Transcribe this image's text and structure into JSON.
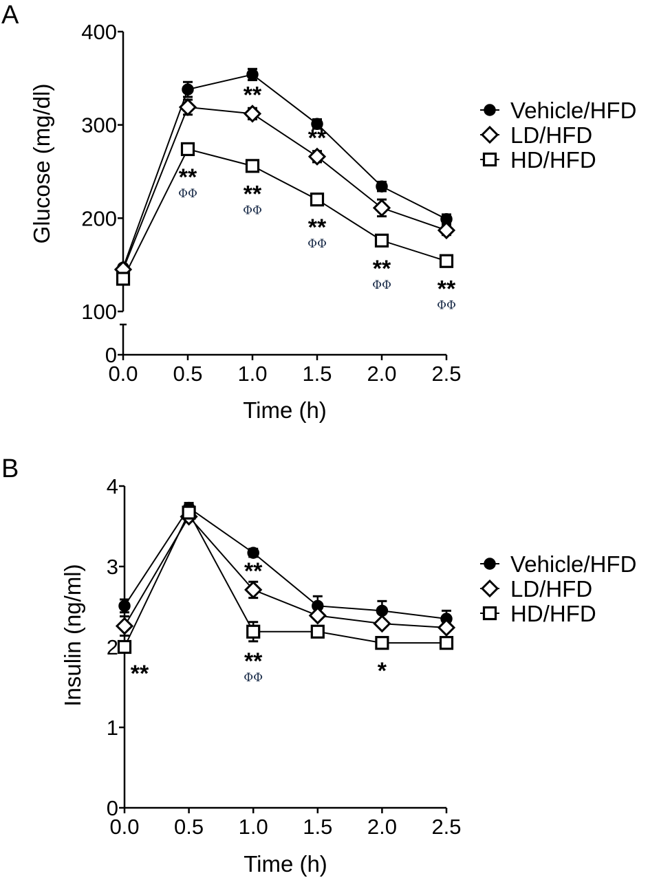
{
  "chart_data": [
    {
      "panel": "A",
      "type": "line",
      "title": "",
      "xlabel": "Time (h)",
      "ylabel": "Glucose (mg/dl)",
      "x": [
        0.0,
        0.5,
        1.0,
        1.5,
        2.0,
        2.5
      ],
      "x_tick_labels": [
        "0.0",
        "0.5",
        "1.0",
        "1.5",
        "2.0",
        "2.5"
      ],
      "y_tick_values": [
        0,
        100,
        200,
        300,
        400
      ],
      "y_tick_labels": [
        "0",
        "100",
        "200",
        "300",
        "400"
      ],
      "ylim": [
        0,
        400
      ],
      "y_axis_break": [
        20,
        100
      ],
      "legend_position": "right",
      "grid": false,
      "series": [
        {
          "name": "Vehicle/HFD",
          "marker": "filled-circle",
          "values": [
            147,
            338,
            354,
            301,
            234,
            199
          ],
          "errors": [
            3,
            8,
            6,
            5,
            5,
            5
          ]
        },
        {
          "name": "LD/HFD",
          "marker": "open-diamond",
          "values": [
            145,
            319,
            312,
            266,
            211,
            187
          ],
          "errors": [
            3,
            8,
            6,
            6,
            9,
            5
          ]
        },
        {
          "name": "HD/HFD",
          "marker": "open-square",
          "values": [
            135,
            274,
            256,
            220,
            176,
            154
          ],
          "errors": [
            3,
            5,
            3,
            3,
            3,
            3
          ]
        }
      ],
      "annotations": [
        {
          "x": 0.5,
          "stars": "**",
          "phi": "ΦΦ",
          "anchor": "HD/HFD"
        },
        {
          "x": 1.0,
          "stars": "**",
          "phi": "",
          "anchor": "LD/HFD"
        },
        {
          "x": 1.0,
          "stars": "**",
          "phi": "ΦΦ",
          "anchor": "HD/HFD"
        },
        {
          "x": 1.5,
          "stars": "**",
          "phi": "",
          "anchor": "LD/HFD"
        },
        {
          "x": 1.5,
          "stars": "**",
          "phi": "ΦΦ",
          "anchor": "HD/HFD"
        },
        {
          "x": 2.0,
          "stars": "**",
          "phi": "ΦΦ",
          "anchor": "HD/HFD"
        },
        {
          "x": 2.5,
          "stars": "**",
          "phi": "ΦΦ",
          "anchor": "HD/HFD"
        }
      ]
    },
    {
      "panel": "B",
      "type": "line",
      "title": "",
      "xlabel": "Time (h)",
      "ylabel": "Insulin (ng/ml)",
      "x": [
        0.0,
        0.5,
        1.0,
        1.5,
        2.0,
        2.5
      ],
      "x_tick_labels": [
        "0.0",
        "0.5",
        "1.0",
        "1.5",
        "2.0",
        "2.5"
      ],
      "y_tick_values": [
        0,
        1,
        2,
        3,
        4
      ],
      "y_tick_labels": [
        "0",
        "1",
        "2",
        "3",
        "4"
      ],
      "ylim": [
        0,
        4
      ],
      "legend_position": "right",
      "grid": false,
      "series": [
        {
          "name": "Vehicle/HFD",
          "marker": "filled-circle",
          "values": [
            2.51,
            3.73,
            3.17,
            2.51,
            2.45,
            2.35
          ],
          "errors": [
            0.08,
            0.06,
            0.05,
            0.12,
            0.12,
            0.1
          ]
        },
        {
          "name": "LD/HFD",
          "marker": "open-diamond",
          "values": [
            2.26,
            3.62,
            2.71,
            2.39,
            2.29,
            2.24
          ],
          "errors": [
            0.12,
            0.04,
            0.1,
            0.03,
            0.03,
            0.03
          ]
        },
        {
          "name": "HD/HFD",
          "marker": "open-square",
          "values": [
            2.0,
            3.67,
            2.19,
            2.19,
            2.05,
            2.05
          ],
          "errors": [
            0.03,
            0.06,
            0.12,
            0.03,
            0.03,
            0.03
          ]
        }
      ],
      "annotations": [
        {
          "x": 0.0,
          "stars": "**",
          "phi": "",
          "anchor": "HD/HFD"
        },
        {
          "x": 1.0,
          "stars": "**",
          "phi": "",
          "anchor": "LD/HFD-above"
        },
        {
          "x": 1.0,
          "stars": "**",
          "phi": "ΦΦ",
          "anchor": "HD/HFD"
        },
        {
          "x": 2.0,
          "stars": "*",
          "phi": "",
          "anchor": "HD/HFD"
        }
      ]
    }
  ],
  "panels": {
    "a_label": "A",
    "b_label": "B"
  }
}
